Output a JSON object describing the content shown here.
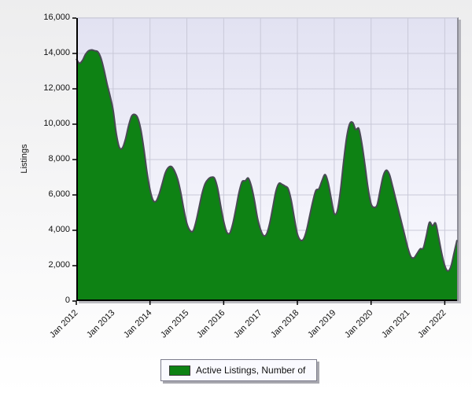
{
  "chart_data": {
    "type": "area",
    "title": "",
    "ylabel": "Listings",
    "xlabel": "",
    "ylim": [
      0,
      16000
    ],
    "grid": true,
    "legend_position": "bottom",
    "plot_bg_top": "#e2e2f2",
    "plot_bg_bottom": "#fbfbff",
    "grid_color": "#c9c9d8",
    "axis_color": "#000000",
    "y_ticks": [
      {
        "value": 0,
        "label": "0"
      },
      {
        "value": 2000,
        "label": "2,000"
      },
      {
        "value": 4000,
        "label": "4,000"
      },
      {
        "value": 6000,
        "label": "6,000"
      },
      {
        "value": 8000,
        "label": "8,000"
      },
      {
        "value": 10000,
        "label": "10,000"
      },
      {
        "value": 12000,
        "label": "12,000"
      },
      {
        "value": 14000,
        "label": "14,000"
      },
      {
        "value": 16000,
        "label": "16,000"
      }
    ],
    "x_ticks": [
      {
        "month_index": 0,
        "label": "Jan 2012"
      },
      {
        "month_index": 12,
        "label": "Jan 2013"
      },
      {
        "month_index": 24,
        "label": "Jan 2014"
      },
      {
        "month_index": 36,
        "label": "Jan 2015"
      },
      {
        "month_index": 48,
        "label": "Jan 2016"
      },
      {
        "month_index": 60,
        "label": "Jan 2017"
      },
      {
        "month_index": 72,
        "label": "Jan 2018"
      },
      {
        "month_index": 84,
        "label": "Jan 2019"
      },
      {
        "month_index": 96,
        "label": "Jan 2020"
      },
      {
        "month_index": 108,
        "label": "Jan 2021"
      },
      {
        "month_index": 120,
        "label": "Jan 2022"
      }
    ],
    "series": [
      {
        "name": "Active Listings, Number of",
        "color": "#0e8214",
        "outline_color": "#4a4a55",
        "start_month": "Jan 2012",
        "cadence": "monthly",
        "values": [
          13700,
          13450,
          13600,
          13950,
          14150,
          14200,
          14150,
          14100,
          13750,
          13100,
          12300,
          11600,
          10800,
          9500,
          8700,
          8650,
          9150,
          9900,
          10450,
          10550,
          10350,
          9700,
          8600,
          7300,
          6300,
          5700,
          5650,
          6050,
          6650,
          7250,
          7550,
          7600,
          7350,
          6900,
          6150,
          5200,
          4400,
          4000,
          3950,
          4500,
          5300,
          6100,
          6650,
          6900,
          7000,
          6950,
          6400,
          5400,
          4500,
          3900,
          3850,
          4400,
          5250,
          6150,
          6750,
          6800,
          6950,
          6500,
          5700,
          4700,
          4050,
          3700,
          3800,
          4400,
          5300,
          6200,
          6650,
          6600,
          6500,
          6350,
          5700,
          4700,
          3800,
          3450,
          3500,
          4000,
          4800,
          5600,
          6250,
          6350,
          6800,
          7150,
          6700,
          5800,
          4950,
          5100,
          6200,
          7800,
          9200,
          10000,
          10100,
          9700,
          9750,
          8900,
          7700,
          6400,
          5500,
          5300,
          5450,
          6300,
          7100,
          7400,
          7150,
          6500,
          5800,
          5100,
          4400,
          3700,
          3000,
          2500,
          2450,
          2700,
          2950,
          3000,
          3700,
          4450,
          4250,
          4400,
          3600,
          2700,
          2000,
          1700,
          1950,
          2700,
          3450
        ]
      }
    ]
  },
  "legend": {
    "label": "Active Listings, Number of",
    "swatch_color": "#0e8214"
  }
}
